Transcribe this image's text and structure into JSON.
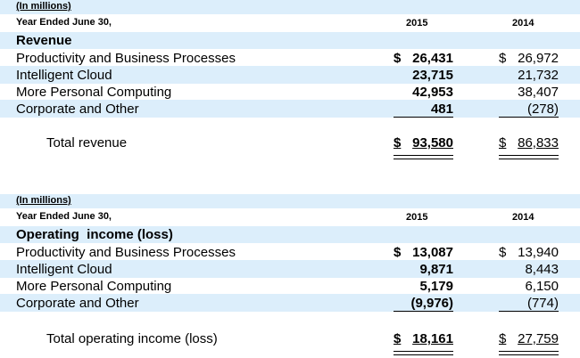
{
  "revenue": {
    "units": "(In millions)",
    "period": "Year Ended June 30,",
    "year_a": "2015",
    "year_b": "2014",
    "section_title": "Revenue",
    "rows": [
      {
        "label": "Productivity and Business Processes",
        "y2015": "26,431",
        "y2014": "26,972",
        "dollar": "$"
      },
      {
        "label": "Intelligent Cloud",
        "y2015": "23,715",
        "y2014": "21,732"
      },
      {
        "label": "More Personal Computing",
        "y2015": "42,953",
        "y2014": "38,407"
      },
      {
        "label": "Corporate and Other",
        "y2015": "481",
        "y2014": "(278)"
      }
    ],
    "total": {
      "label": "Total revenue",
      "y2015": "93,580",
      "y2014": "86,833",
      "dollar": "$"
    }
  },
  "operating": {
    "units": "(In millions)",
    "period": "Year Ended June 30,",
    "year_a": "2015",
    "year_b": "2014",
    "section_title": "Operating  income (loss)",
    "rows": [
      {
        "label": "Productivity and Business Processes",
        "y2015": "13,087",
        "y2014": "13,940",
        "dollar": "$"
      },
      {
        "label": "Intelligent Cloud",
        "y2015": "9,871",
        "y2014": "8,443"
      },
      {
        "label": "More Personal Computing",
        "y2015": "5,179",
        "y2014": "6,150"
      },
      {
        "label": "Corporate and Other",
        "y2015": "(9,976)",
        "y2014": "(774)"
      }
    ],
    "total": {
      "label": "Total operating income (loss)",
      "y2015": "18,161",
      "y2014": "27,759",
      "dollar": "$"
    }
  },
  "colors": {
    "band": "#dceefb",
    "text": "#000000"
  }
}
